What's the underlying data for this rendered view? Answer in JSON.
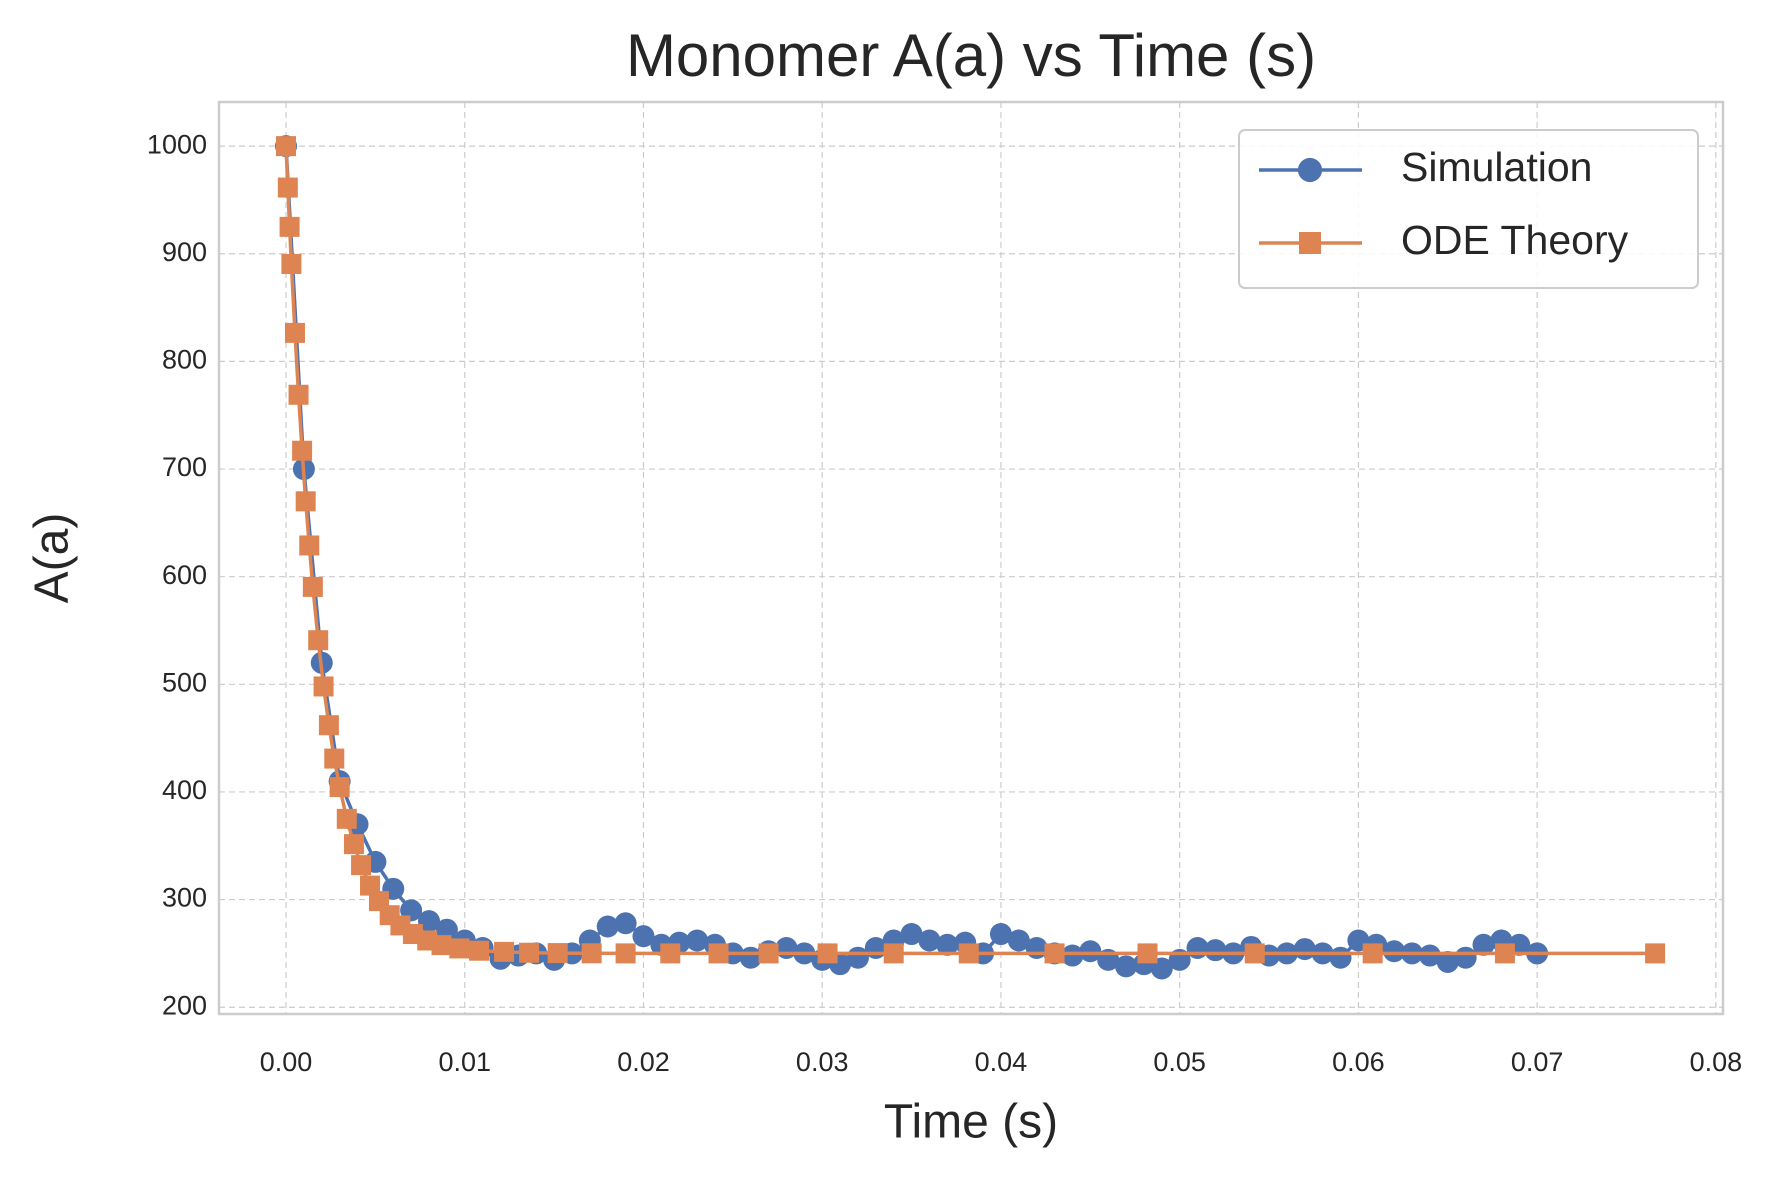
{
  "chart_data": {
    "type": "line",
    "title": "Monomer A(a) vs Time (s)",
    "xlabel": "Time (s)",
    "ylabel": "A(a)",
    "xlim": [
      -0.00375,
      0.0804
    ],
    "ylim": [
      193.7,
      1041
    ],
    "xticks": [
      {
        "value": 0,
        "label": "0.00"
      },
      0.01,
      0.02,
      0.03,
      0.04,
      0.05,
      0.06,
      0.07,
      0.08
    ],
    "yticks": [
      200,
      300,
      400,
      500,
      600,
      700,
      800,
      900,
      1000
    ],
    "grid": true,
    "legend": "upper right",
    "series": [
      {
        "name": "Simulation",
        "color": "#4c72b0",
        "marker": "circle",
        "x": [
          0,
          0.001,
          0.002,
          0.003,
          0.004,
          0.005,
          0.006,
          0.007,
          0.008,
          0.009,
          0.01,
          0.011,
          0.012,
          0.013,
          0.014,
          0.015,
          0.016,
          0.017,
          0.018,
          0.019,
          0.02,
          0.021,
          0.022,
          0.023,
          0.024,
          0.025,
          0.026,
          0.027,
          0.028,
          0.029,
          0.03,
          0.031,
          0.032,
          0.033,
          0.034,
          0.035,
          0.036,
          0.037,
          0.038,
          0.039,
          0.04,
          0.041,
          0.042,
          0.043,
          0.044,
          0.045,
          0.046,
          0.047,
          0.048,
          0.049,
          0.05,
          0.051,
          0.052,
          0.053,
          0.054,
          0.055,
          0.056,
          0.057,
          0.058,
          0.059,
          0.06,
          0.061,
          0.062,
          0.063,
          0.064,
          0.065,
          0.066,
          0.067,
          0.068,
          0.069,
          0.07
        ],
        "values": [
          1000,
          700,
          520,
          410,
          370,
          335,
          310,
          290,
          280,
          272,
          262,
          255,
          245,
          248,
          250,
          244,
          250,
          262,
          275,
          278,
          266,
          258,
          260,
          262,
          258,
          250,
          246,
          252,
          255,
          250,
          244,
          240,
          246,
          255,
          262,
          268,
          262,
          258,
          260,
          250,
          268,
          262,
          255,
          250,
          248,
          252,
          244,
          238,
          240,
          236,
          244,
          255,
          253,
          250,
          256,
          248,
          250,
          254,
          250,
          246,
          262,
          258,
          252,
          250,
          248,
          242,
          246,
          258,
          262,
          258,
          250
        ]
      },
      {
        "name": "ODE Theory",
        "color": "#dd8452",
        "marker": "square",
        "x": [
          0,
          0.0001,
          0.0002,
          0.0003,
          0.0005,
          0.0007,
          0.0009,
          0.0011,
          0.0013,
          0.0015,
          0.0018,
          0.0021,
          0.0024,
          0.0027,
          0.003,
          0.0034,
          0.0038,
          0.0042,
          0.0047,
          0.0052,
          0.0058,
          0.0064,
          0.0071,
          0.0079,
          0.0087,
          0.0097,
          0.0108,
          0.0122,
          0.0136,
          0.0152,
          0.0171,
          0.019,
          0.0215,
          0.0242,
          0.027,
          0.0303,
          0.034,
          0.0382,
          0.043,
          0.0482,
          0.0542,
          0.0608,
          0.0682,
          0.0766
        ],
        "values": [
          1000,
          961.5,
          925,
          890.5,
          826.5,
          769,
          717,
          670,
          629,
          590.5,
          541,
          498,
          462,
          431,
          404.5,
          375,
          351.5,
          332,
          313,
          298.6,
          285.5,
          276,
          268,
          262,
          257.7,
          254.6,
          252.5,
          251.4,
          250.6,
          250.3,
          250.1,
          250,
          250,
          250,
          250,
          250,
          250,
          250,
          250,
          250,
          250,
          250,
          250,
          250
        ]
      }
    ]
  }
}
